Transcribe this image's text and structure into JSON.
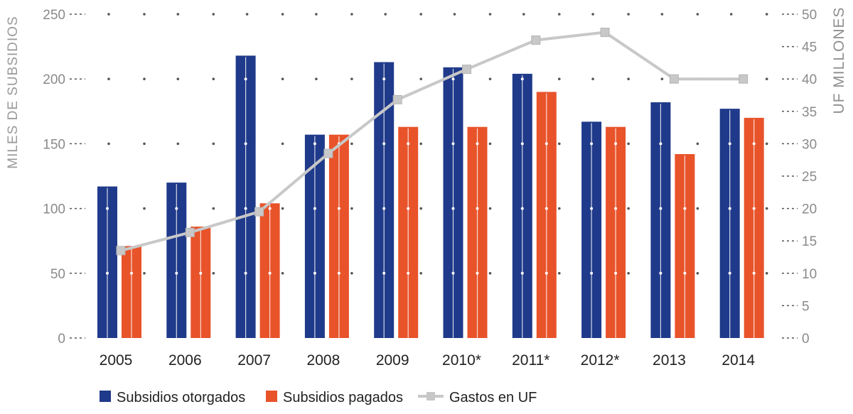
{
  "chart_data": {
    "type": "bar",
    "categories": [
      "2005",
      "2006",
      "2007",
      "2008",
      "2009",
      "2010*",
      "2011*",
      "2012*",
      "2013",
      "2014"
    ],
    "series": [
      {
        "name": "Subsidios otorgados",
        "type": "bar",
        "axis": "left",
        "values": [
          117,
          120,
          218,
          157,
          213,
          209,
          204,
          167,
          182,
          177
        ],
        "color": "#1f3a8a"
      },
      {
        "name": "Subsidios pagados",
        "type": "bar",
        "axis": "left",
        "values": [
          71,
          86,
          104,
          157,
          163,
          163,
          190,
          163,
          142,
          170
        ],
        "color": "#e8532a"
      },
      {
        "name": "Gastos en UF",
        "type": "line",
        "axis": "right",
        "values": [
          13.5,
          16.3,
          19.5,
          28.5,
          36.8,
          41.5,
          46.0,
          47.2,
          40.0,
          40.0
        ],
        "color": "#c8c8c8"
      }
    ],
    "left_axis": {
      "label": "MILES DE SUBSIDIOS",
      "ticks": [
        "0",
        "50",
        "100",
        "150",
        "200",
        "250"
      ],
      "ylim": [
        0,
        250
      ]
    },
    "right_axis": {
      "label": "UF MILLONES",
      "ticks": [
        "0",
        "5",
        "10",
        "15",
        "20",
        "25",
        "30",
        "35",
        "40",
        "45",
        "50"
      ],
      "ylim": [
        0,
        50
      ]
    },
    "grid": "dotted",
    "legend_position": "bottom-left"
  }
}
